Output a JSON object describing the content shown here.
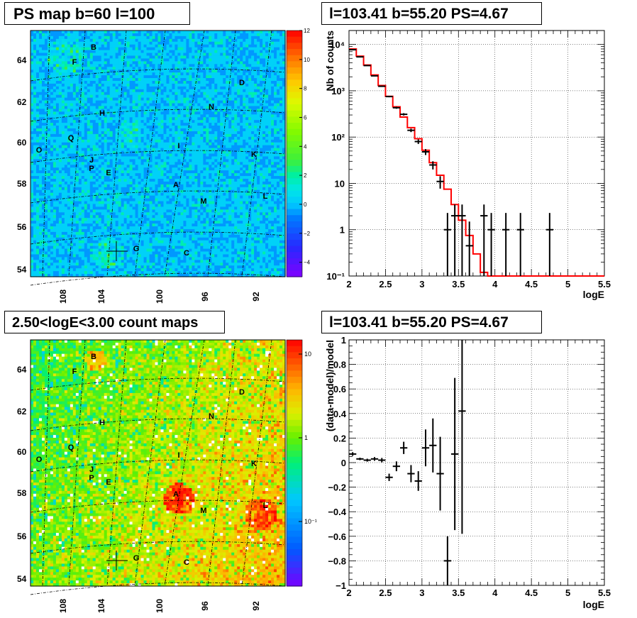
{
  "panels": {
    "ps_map": {
      "title": "PS map b=60 l=100",
      "colorbar_ticks": [
        "12",
        "10",
        "8",
        "6",
        "4",
        "2",
        "0",
        "−2",
        "−4"
      ]
    },
    "spectrum": {
      "title": "l=103.41 b=55.20 PS=4.67"
    },
    "count_map": {
      "title": "2.50<logE<3.00 count maps",
      "colorbar_ticks": [
        "10",
        "1",
        "10⁻¹"
      ]
    },
    "residual": {
      "title": "l=103.41 b=55.20 PS=4.67"
    }
  },
  "chart_data": [
    {
      "type": "heatmap",
      "title": "PS map b=60 l=100",
      "xlabel": "",
      "ylabel": "",
      "x_ticks": [
        "108",
        "104",
        "100",
        "96",
        "92"
      ],
      "y_ticks": [
        "64",
        "62",
        "60",
        "58",
        "56",
        "54"
      ],
      "color_scale": {
        "min": -5,
        "max": 12,
        "log": false
      },
      "colorbar_ticks": [
        "12",
        "10",
        "8",
        "6",
        "4",
        "2",
        "0",
        "−2",
        "−4"
      ],
      "source_labels": [
        "B",
        "F",
        "D",
        "N",
        "H",
        "Q",
        "O",
        "I",
        "K",
        "J",
        "P",
        "E",
        "A",
        "M",
        "L",
        "G",
        "C"
      ],
      "marker": {
        "label": "G",
        "l": 103.41,
        "b": 55.2
      }
    },
    {
      "type": "line",
      "title": "l=103.41 b=55.20 PS=4.67",
      "xlabel": "logE",
      "ylabel": "Nb of counts",
      "xlim": [
        2,
        5.5
      ],
      "ylim": [
        0.1,
        20000
      ],
      "log_y": true,
      "grid": true,
      "x_ticks": [
        "2",
        "2.5",
        "3",
        "3.5",
        "4",
        "4.5",
        "5",
        "5.5"
      ],
      "y_ticks": [
        "10⁻¹",
        "1",
        "10",
        "10²",
        "10³",
        "10⁴"
      ],
      "series": [
        {
          "style": "step",
          "color": "#ff0000",
          "bin_edges": [
            2.0,
            2.1,
            2.2,
            2.3,
            2.4,
            2.5,
            2.6,
            2.7,
            2.8,
            2.9,
            3.0,
            3.1,
            3.2,
            3.3,
            3.4,
            3.5,
            3.6,
            3.7,
            3.8,
            3.9,
            4.0,
            4.1,
            4.2,
            4.3,
            4.4,
            4.5,
            4.6,
            4.7,
            4.8,
            4.9,
            5.0,
            5.1,
            5.2,
            5.3,
            5.4,
            5.5
          ],
          "values": [
            8000,
            5600,
            3600,
            2200,
            1300,
            760,
            450,
            270,
            160,
            92,
            52,
            28,
            15,
            7.5,
            3.5,
            1.6,
            0.75,
            0.3,
            0.12,
            0.1,
            0.1,
            0.1,
            0.1,
            0.1,
            0.1,
            0.1,
            0.1,
            0.1,
            0.1,
            0.1,
            0.1,
            0.1,
            0.1,
            0.1,
            0.1
          ]
        },
        {
          "style": "errorbars",
          "color": "#000000",
          "x": [
            2.05,
            2.15,
            2.25,
            2.35,
            2.45,
            2.55,
            2.65,
            2.75,
            2.85,
            2.95,
            3.05,
            3.15,
            3.25,
            3.35,
            3.45,
            3.55,
            3.65,
            3.85,
            3.95,
            4.15,
            4.35,
            4.75
          ],
          "y": [
            7700,
            5400,
            3500,
            2100,
            1250,
            750,
            430,
            310,
            140,
            80,
            48,
            25,
            11,
            1,
            2,
            2,
            0.45,
            2,
            1,
            1,
            1,
            1
          ],
          "y_lo": [
            7612,
            5327,
            3441,
            2054,
            1215,
            723,
            409,
            292,
            128,
            71,
            41,
            20,
            7.7,
            0.1,
            0.1,
            0.1,
            0.1,
            0.1,
            0.1,
            0.1,
            0.1,
            0.1
          ],
          "y_hi": [
            7788,
            5473,
            3559,
            2146,
            1285,
            777,
            451,
            328,
            152,
            89,
            55,
            30,
            14.3,
            2.3,
            3.5,
            3.5,
            1.5,
            3.5,
            2.3,
            2.3,
            2.3,
            2.3
          ]
        }
      ]
    },
    {
      "type": "heatmap",
      "title": "2.50<logE<3.00 count maps",
      "xlabel": "",
      "ylabel": "",
      "x_ticks": [
        "108",
        "104",
        "100",
        "96",
        "92"
      ],
      "y_ticks": [
        "64",
        "62",
        "60",
        "58",
        "56",
        "54"
      ],
      "color_scale": {
        "min": 0.05,
        "max": 15,
        "log": true
      },
      "colorbar_ticks": [
        "10",
        "1",
        "10⁻¹"
      ],
      "source_labels": [
        "B",
        "F",
        "D",
        "N",
        "H",
        "Q",
        "O",
        "I",
        "K",
        "J",
        "P",
        "E",
        "A",
        "M",
        "L",
        "G",
        "C"
      ],
      "marker": {
        "label": "G",
        "l": 103.41,
        "b": 55.2
      }
    },
    {
      "type": "scatter",
      "title": "l=103.41 b=55.20 PS=4.67",
      "xlabel": "logE",
      "ylabel": "(data-model)/model",
      "xlim": [
        2,
        5.5
      ],
      "ylim": [
        -1,
        1
      ],
      "grid": true,
      "x_ticks": [
        "2",
        "2.5",
        "3",
        "3.5",
        "4",
        "4.5",
        "5",
        "5.5"
      ],
      "y_ticks": [
        "1",
        "0.8",
        "0.6",
        "0.4",
        "0.2",
        "0",
        "−0.2",
        "−0.4",
        "−0.6",
        "−0.8",
        "−1"
      ],
      "series": [
        {
          "style": "errorbars",
          "color": "#000000",
          "x": [
            2.05,
            2.15,
            2.25,
            2.35,
            2.45,
            2.55,
            2.65,
            2.75,
            2.85,
            2.95,
            3.05,
            3.15,
            3.25,
            3.35,
            3.45,
            3.55
          ],
          "y": [
            0.07,
            0.03,
            0.02,
            0.03,
            0.02,
            -0.12,
            -0.03,
            0.12,
            -0.09,
            -0.15,
            0.12,
            0.14,
            -0.09,
            -0.8,
            0.07,
            0.42
          ],
          "err": [
            0.015,
            0.01,
            0.012,
            0.015,
            0.018,
            0.03,
            0.04,
            0.05,
            0.07,
            0.08,
            0.15,
            0.22,
            0.3,
            0.2,
            0.62,
            1.0
          ]
        }
      ]
    }
  ]
}
